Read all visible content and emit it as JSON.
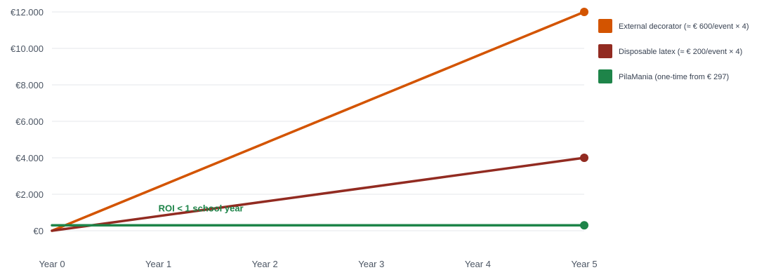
{
  "chart_data": {
    "type": "line",
    "x": [
      "Year 0",
      "Year 1",
      "Year 2",
      "Year 3",
      "Year 4",
      "Year 5"
    ],
    "ylim": [
      0,
      12000
    ],
    "yticks": [
      0,
      2000,
      4000,
      6000,
      8000,
      10000,
      12000
    ],
    "ytick_labels": [
      "€0",
      "€2.000",
      "€4.000",
      "€6.000",
      "€8.000",
      "€10.000",
      "€12.000"
    ],
    "grid": true,
    "legend_position": "right",
    "series": [
      {
        "name": "External decorator (≈ € 600/event × 4)",
        "color": "#d35400",
        "values": [
          0,
          2400,
          4800,
          7200,
          9600,
          12000
        ],
        "end_marker": true
      },
      {
        "name": "Disposable latex (≈ € 200/event × 4)",
        "color": "#922b21",
        "values": [
          0,
          800,
          1600,
          2400,
          3200,
          4000
        ],
        "end_marker": true
      },
      {
        "name": "PilaMania (one-time from € 297)",
        "color": "#1e8449",
        "values": [
          297,
          297,
          297,
          297,
          297,
          297
        ],
        "end_marker": true
      }
    ],
    "annotations": [
      {
        "text": "ROI < 1 school year",
        "x": "Year 1",
        "y": 1050,
        "color": "#1e8449"
      }
    ]
  }
}
